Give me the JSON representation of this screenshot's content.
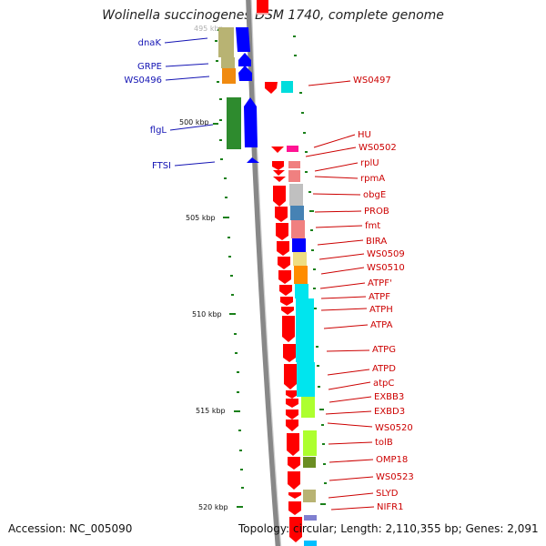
{
  "title": "Wolinella succinogenes DSM 1740, complete genome",
  "footer": {
    "accession": "Accession: NC_005090",
    "topology": "Topology: circular; Length: 2,110,355 bp; Genes: 2,091"
  },
  "ruler_labels": [
    "495 kbp",
    "500 kbp",
    "505 kbp",
    "510 kbp",
    "515 kbp",
    "520 kbp"
  ],
  "left_gene_labels": [
    "dnaK",
    "GRPE",
    "WS0496",
    "flgL",
    "FTSI"
  ],
  "right_gene_labels": [
    "WS0497",
    "HU",
    "WS0502",
    "rplU",
    "rpmA",
    "obgE",
    "PROB",
    "fmt",
    "BIRA",
    "WS0509",
    "WS0510",
    "ATPF'",
    "ATPF",
    "ATPH",
    "ATPA",
    "ATPG",
    "ATPD",
    "atpC",
    "EXBB3",
    "EXBD3",
    "WS0520",
    "tolB",
    "OMP18",
    "WS0523",
    "SLYD",
    "NIFR1"
  ],
  "colors": {
    "strand_arrow": "#ff0000",
    "forward_arrow": "#0000ff",
    "flagella_arrow": "#2e8b2e",
    "left_label": "#1414b4",
    "right_label": "#cc0000",
    "ruler_tick": "#1a801a",
    "backbone": "#888888"
  }
}
